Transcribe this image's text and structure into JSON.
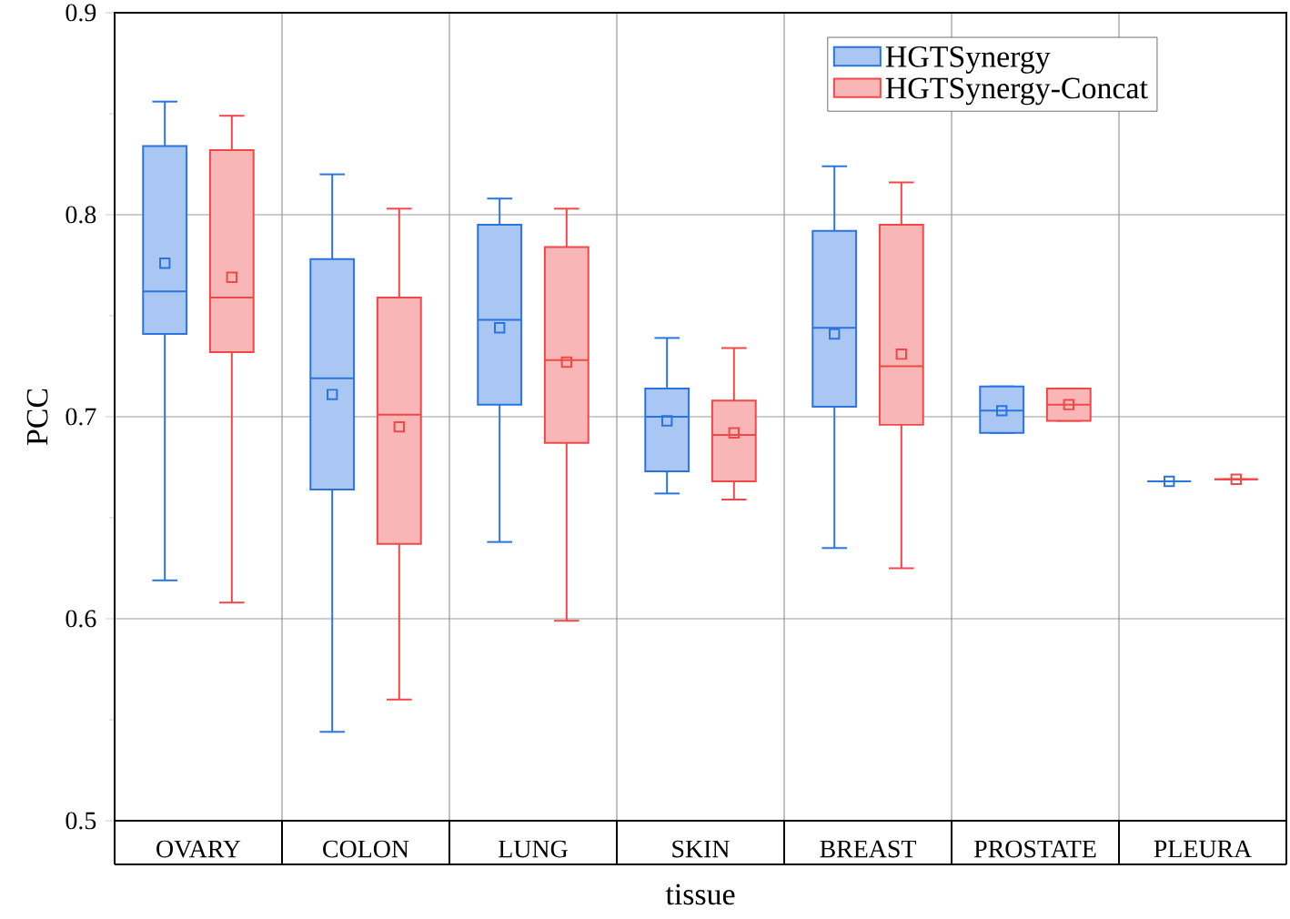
{
  "chart_data": {
    "type": "box",
    "xlabel": "tissue",
    "ylabel": "PCC",
    "categories": [
      "OVARY",
      "COLON",
      "LUNG",
      "SKIN",
      "BREAST",
      "PROSTATE",
      "PLEURA"
    ],
    "ylim": [
      0.5,
      0.9
    ],
    "yticks": [
      0.5,
      0.6,
      0.7,
      0.8,
      0.9
    ],
    "grid": true,
    "legend": "top right",
    "marker": "square",
    "series": [
      {
        "name": "HGTSynergy",
        "color": "#2a74e0",
        "boxes": [
          {
            "low": 0.619,
            "q1": 0.741,
            "median": 0.762,
            "q3": 0.834,
            "high": 0.856,
            "mean": 0.776
          },
          {
            "low": 0.544,
            "q1": 0.664,
            "median": 0.719,
            "q3": 0.778,
            "high": 0.82,
            "mean": 0.711
          },
          {
            "low": 0.638,
            "q1": 0.706,
            "median": 0.748,
            "q3": 0.795,
            "high": 0.808,
            "mean": 0.744
          },
          {
            "low": 0.662,
            "q1": 0.673,
            "median": 0.7,
            "q3": 0.714,
            "high": 0.739,
            "mean": 0.698
          },
          {
            "low": 0.635,
            "q1": 0.705,
            "median": 0.744,
            "q3": 0.792,
            "high": 0.824,
            "mean": 0.741
          },
          {
            "low": 0.692,
            "q1": 0.692,
            "median": 0.703,
            "q3": 0.715,
            "high": 0.715,
            "mean": 0.703
          },
          {
            "low": 0.668,
            "q1": 0.668,
            "median": 0.668,
            "q3": 0.668,
            "high": 0.668,
            "mean": 0.668
          }
        ]
      },
      {
        "name": "HGTSynergy-Concat",
        "color": "#f04848",
        "boxes": [
          {
            "low": 0.608,
            "q1": 0.732,
            "median": 0.759,
            "q3": 0.832,
            "high": 0.849,
            "mean": 0.769
          },
          {
            "low": 0.56,
            "q1": 0.637,
            "median": 0.701,
            "q3": 0.759,
            "high": 0.803,
            "mean": 0.695
          },
          {
            "low": 0.599,
            "q1": 0.687,
            "median": 0.728,
            "q3": 0.784,
            "high": 0.803,
            "mean": 0.727
          },
          {
            "low": 0.659,
            "q1": 0.668,
            "median": 0.691,
            "q3": 0.708,
            "high": 0.734,
            "mean": 0.692
          },
          {
            "low": 0.625,
            "q1": 0.696,
            "median": 0.725,
            "q3": 0.795,
            "high": 0.816,
            "mean": 0.731
          },
          {
            "low": 0.698,
            "q1": 0.698,
            "median": 0.706,
            "q3": 0.714,
            "high": 0.714,
            "mean": 0.706
          },
          {
            "low": 0.669,
            "q1": 0.669,
            "median": 0.669,
            "q3": 0.669,
            "high": 0.669,
            "mean": 0.669
          }
        ]
      }
    ]
  }
}
